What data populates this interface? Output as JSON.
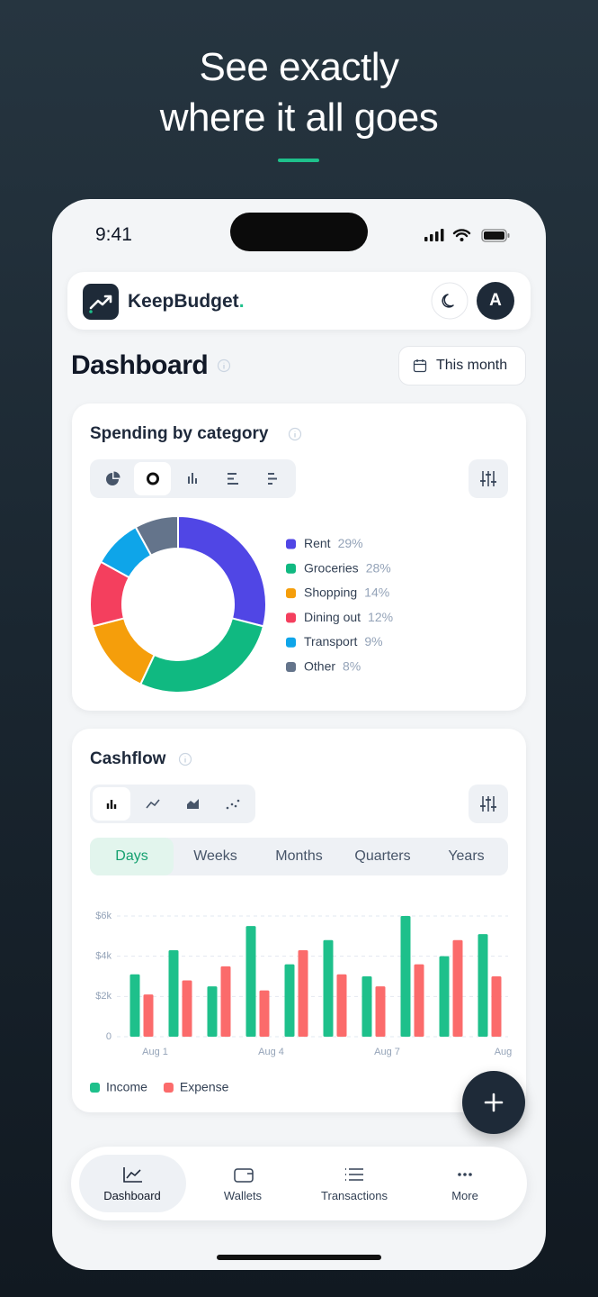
{
  "headline": [
    "See exactly",
    "where it all goes"
  ],
  "status_bar": {
    "time": "9:41"
  },
  "app_bar": {
    "brand": "KeepBudget",
    "brand_accent": ".",
    "avatar": "A"
  },
  "page": {
    "title": "Dashboard",
    "period": "This month"
  },
  "chart_data": [
    {
      "type": "pie",
      "title": "Spending by category",
      "categories": [
        "Rent",
        "Groceries",
        "Shopping",
        "Dining out",
        "Transport",
        "Other"
      ],
      "values": [
        29,
        28,
        14,
        12,
        9,
        8
      ],
      "value_labels": [
        "29%",
        "28%",
        "14%",
        "12%",
        "9%",
        "8%"
      ],
      "colors": [
        "#5046e5",
        "#10b981",
        "#f59e0b",
        "#f43f5e",
        "#0ea5e9",
        "#64748b"
      ],
      "donut": true
    },
    {
      "type": "bar",
      "title": "Cashflow",
      "tabs": [
        "Days",
        "Weeks",
        "Months",
        "Quarters",
        "Years"
      ],
      "active_tab": 0,
      "categories": [
        "Aug 1",
        null,
        null,
        "Aug 4",
        null,
        null,
        "Aug 7",
        null,
        null,
        "Aug"
      ],
      "series": [
        {
          "name": "Income",
          "color": "#1ec08b",
          "values": [
            3100,
            4300,
            2500,
            5500,
            3600,
            4800,
            3000,
            6000,
            4000,
            5100
          ]
        },
        {
          "name": "Expense",
          "color": "#fb6b6b",
          "values": [
            2100,
            2800,
            3500,
            2300,
            4300,
            3100,
            2500,
            3600,
            4800,
            3000
          ]
        }
      ],
      "ylim": [
        0,
        6000
      ],
      "yticks": [
        0,
        {
          "value": 2000,
          "label": "$2k"
        },
        {
          "value": 4000,
          "label": "$4k"
        },
        {
          "value": 6000,
          "label": "$6k"
        }
      ],
      "grid": true
    }
  ],
  "nav": [
    "Dashboard",
    "Wallets",
    "Transactions",
    "More"
  ],
  "active_nav": 0
}
